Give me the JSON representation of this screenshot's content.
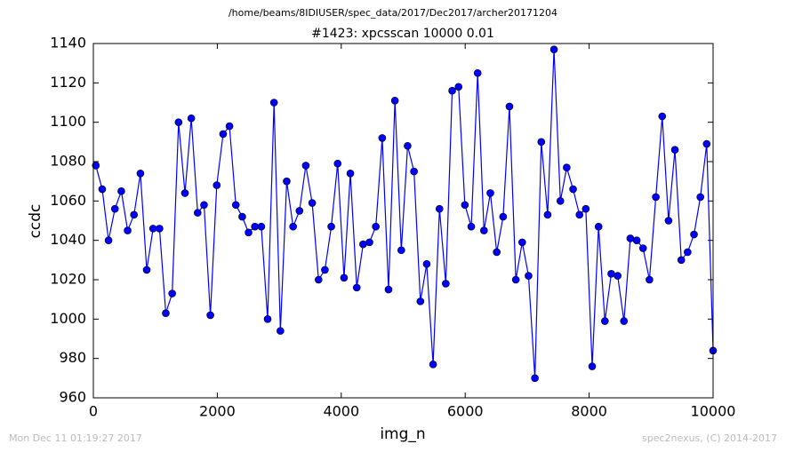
{
  "chart_data": {
    "type": "line",
    "suptitle": "/home/beams/8IDIUSER/spec_data/2017/Dec2017/archer20171204",
    "title": "#1423: xpcsscan 10000 0.01",
    "xlabel": "img_n",
    "ylabel": "ccdc",
    "footer_left": "Mon Dec 11 01:19:27 2017",
    "footer_right": "spec2nexus, (C) 2014-2017",
    "x": [
      40,
      143,
      245,
      348,
      451,
      553,
      656,
      759,
      861,
      964,
      1067,
      1169,
      1272,
      1375,
      1478,
      1580,
      1683,
      1786,
      1888,
      1991,
      2094,
      2196,
      2299,
      2402,
      2504,
      2607,
      2710,
      2812,
      2915,
      3018,
      3120,
      3223,
      3326,
      3428,
      3531,
      3634,
      3736,
      3839,
      3942,
      4045,
      4147,
      4250,
      4353,
      4455,
      4558,
      4661,
      4763,
      4866,
      4969,
      5071,
      5174,
      5277,
      5379,
      5482,
      5585,
      5687,
      5790,
      5893,
      5995,
      6098,
      6201,
      6303,
      6406,
      6509,
      6612,
      6714,
      6817,
      6920,
      7022,
      7125,
      7228,
      7330,
      7433,
      7536,
      7638,
      7741,
      7844,
      7946,
      8049,
      8152,
      8254,
      8357,
      8460,
      8562,
      8665,
      8768,
      8870,
      8973,
      9076,
      9179,
      9281,
      9384,
      9487,
      9589,
      9692,
      9795,
      9897,
      10000
    ],
    "series": [
      {
        "color": "#0000ff",
        "marker_color": "#0000ff",
        "values": [
          1078,
          1066,
          1040,
          1056,
          1065,
          1045,
          1053,
          1074,
          1025,
          1046,
          1046,
          1003,
          1013,
          1100,
          1064,
          1102,
          1054,
          1058,
          1002,
          1068,
          1094,
          1098,
          1058,
          1052,
          1044,
          1047,
          1047,
          1000,
          1110,
          994,
          1070,
          1047,
          1055,
          1078,
          1059,
          1020,
          1025,
          1047,
          1079,
          1021,
          1074,
          1016,
          1038,
          1039,
          1047,
          1092,
          1015,
          1111,
          1035,
          1088,
          1075,
          1009,
          1028,
          977,
          1056,
          1018,
          1116,
          1118,
          1058,
          1047,
          1125,
          1045,
          1064,
          1034,
          1052,
          1108,
          1020,
          1039,
          1022,
          970,
          1090,
          1053,
          1137,
          1060,
          1077,
          1066,
          1053,
          1056,
          976,
          1047,
          999,
          1023,
          1022,
          999,
          1041,
          1040,
          1036,
          1020,
          1062,
          1103,
          1050,
          1086,
          1030,
          1034,
          1043,
          1062,
          1089,
          984
        ]
      }
    ],
    "xlim": [
      0,
      10000
    ],
    "xticks": [
      0,
      2000,
      4000,
      6000,
      8000,
      10000
    ],
    "ylim": [
      960,
      1140
    ],
    "yticks": [
      960,
      980,
      1000,
      1020,
      1040,
      1060,
      1080,
      1100,
      1120,
      1140
    ],
    "grid": false
  }
}
